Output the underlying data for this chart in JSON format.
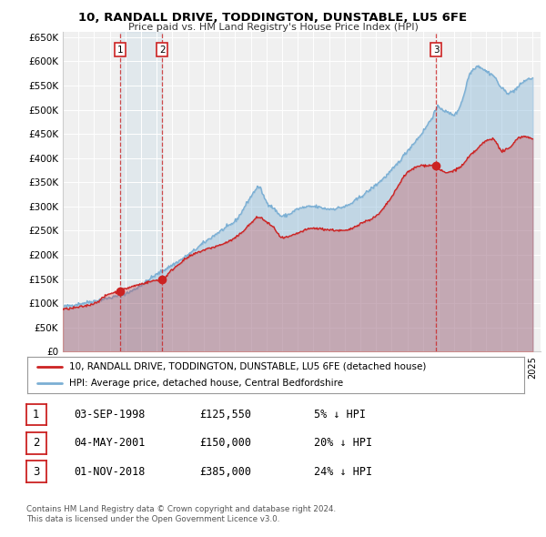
{
  "title": "10, RANDALL DRIVE, TODDINGTON, DUNSTABLE, LU5 6FE",
  "subtitle": "Price paid vs. HM Land Registry's House Price Index (HPI)",
  "xlim": [
    1995.0,
    2025.5
  ],
  "ylim": [
    0,
    660000
  ],
  "yticks": [
    0,
    50000,
    100000,
    150000,
    200000,
    250000,
    300000,
    350000,
    400000,
    450000,
    500000,
    550000,
    600000,
    650000
  ],
  "ytick_labels": [
    "£0",
    "£50K",
    "£100K",
    "£150K",
    "£200K",
    "£250K",
    "£300K",
    "£350K",
    "£400K",
    "£450K",
    "£500K",
    "£550K",
    "£600K",
    "£650K"
  ],
  "xticks": [
    1995,
    1996,
    1997,
    1998,
    1999,
    2000,
    2001,
    2002,
    2003,
    2004,
    2005,
    2006,
    2007,
    2008,
    2009,
    2010,
    2011,
    2012,
    2013,
    2014,
    2015,
    2016,
    2017,
    2018,
    2019,
    2020,
    2021,
    2022,
    2023,
    2024,
    2025
  ],
  "sale_dates": [
    1998.67,
    2001.34,
    2018.83
  ],
  "sale_prices": [
    125550,
    150000,
    385000
  ],
  "sale_labels": [
    "1",
    "2",
    "3"
  ],
  "hpi_color": "#7bafd4",
  "hpi_fill_alpha": 0.4,
  "price_color": "#cc2222",
  "price_fill_alpha": 0.25,
  "sale_dot_color": "#cc2222",
  "sale_vline_color": "#cc2222",
  "sale_box_color": "#cc2222",
  "legend_line1": "10, RANDALL DRIVE, TODDINGTON, DUNSTABLE, LU5 6FE (detached house)",
  "legend_line2": "HPI: Average price, detached house, Central Bedfordshire",
  "table_rows": [
    [
      "1",
      "03-SEP-1998",
      "£125,550",
      "5% ↓ HPI"
    ],
    [
      "2",
      "04-MAY-2001",
      "£150,000",
      "20% ↓ HPI"
    ],
    [
      "3",
      "01-NOV-2018",
      "£385,000",
      "24% ↓ HPI"
    ]
  ],
  "footnote1": "Contains HM Land Registry data © Crown copyright and database right 2024.",
  "footnote2": "This data is licensed under the Open Government Licence v3.0.",
  "background_color": "#ffffff",
  "plot_bg_color": "#f0f0f0",
  "hpi_anchors_x": [
    1995,
    1997,
    1999,
    2001,
    2003,
    2004,
    2005,
    2006,
    2007,
    2007.5,
    2008,
    2008.5,
    2009,
    2009.5,
    2010,
    2011,
    2012,
    2013,
    2014,
    2015,
    2016,
    2017,
    2018,
    2018.5,
    2019,
    2019.5,
    2020,
    2020.5,
    2021,
    2021.5,
    2022,
    2022.5,
    2023,
    2023.5,
    2024,
    2024.5,
    2025
  ],
  "hpi_anchors_y": [
    93000,
    105000,
    120000,
    160000,
    200000,
    225000,
    248000,
    270000,
    320000,
    340000,
    310000,
    295000,
    280000,
    285000,
    295000,
    300000,
    295000,
    300000,
    320000,
    345000,
    375000,
    415000,
    455000,
    480000,
    505000,
    495000,
    490000,
    520000,
    575000,
    590000,
    580000,
    570000,
    545000,
    535000,
    545000,
    560000,
    565000
  ],
  "price_anchors_x": [
    1995,
    1996,
    1997,
    1998,
    1998.67,
    1999,
    2000,
    2001,
    2001.34,
    2002,
    2003,
    2004,
    2005,
    2006,
    2007,
    2007.5,
    2008,
    2008.5,
    2009,
    2009.5,
    2010,
    2011,
    2012,
    2013,
    2014,
    2015,
    2016,
    2017,
    2018,
    2018.83,
    2019,
    2019.5,
    2020,
    2020.5,
    2021,
    2021.5,
    2022,
    2022.5,
    2023,
    2023.5,
    2024,
    2024.5,
    2025
  ],
  "price_anchors_y": [
    88000,
    92000,
    100000,
    120000,
    125550,
    130000,
    140000,
    148000,
    150000,
    170000,
    195000,
    210000,
    220000,
    235000,
    265000,
    278000,
    268000,
    255000,
    235000,
    238000,
    245000,
    255000,
    252000,
    250000,
    265000,
    280000,
    320000,
    370000,
    385000,
    385000,
    378000,
    370000,
    375000,
    385000,
    405000,
    420000,
    435000,
    440000,
    415000,
    420000,
    440000,
    445000,
    438000
  ]
}
